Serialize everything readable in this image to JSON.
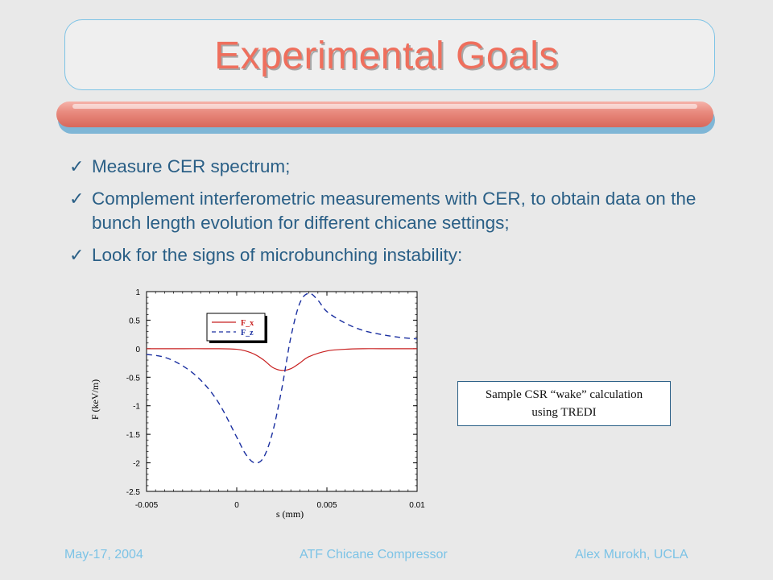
{
  "slide": {
    "title": "Experimental Goals",
    "bullets": [
      "Measure CER spectrum;",
      "Complement interferometric measurements with CER, to obtain data on the bunch length evolution for different chicane settings;",
      "Look for the signs of microbunching instability:"
    ],
    "note_line1": "Sample CSR “wake” calculation",
    "note_line2": "using TREDI",
    "footer_left": "May-17, 2004",
    "footer_center": "ATF Chicane Compressor",
    "footer_right": "Alex Murokh, UCLA",
    "colors": {
      "title": "#ef6f5d",
      "text": "#2a5f86",
      "fx": "#c82020",
      "fz": "#1a2fa0"
    },
    "icons": {
      "bullet": "checkmark-icon"
    }
  },
  "chart_data": {
    "type": "line",
    "xlabel": "s (mm)",
    "ylabel": "F (keV/m)",
    "xlim": [
      -0.005,
      0.01
    ],
    "ylim": [
      -2.5,
      1
    ],
    "x_ticks": [
      "-0.005",
      "0",
      "0.005",
      "0.01"
    ],
    "y_ticks": [
      "1",
      "0.5",
      "0",
      "-0.5",
      "-1",
      "-1.5",
      "-2",
      "-2.5"
    ],
    "legend_position": "top-left",
    "series": [
      {
        "name": "F_x",
        "style": "solid",
        "color": "#c82020",
        "x": [
          -0.005,
          -0.003,
          -0.001,
          0.0,
          0.0005,
          0.001,
          0.0015,
          0.002,
          0.0025,
          0.003,
          0.0035,
          0.004,
          0.005,
          0.006,
          0.007,
          0.008,
          0.01
        ],
        "y": [
          0,
          0,
          0,
          -0.01,
          -0.04,
          -0.1,
          -0.2,
          -0.33,
          -0.38,
          -0.35,
          -0.25,
          -0.14,
          -0.04,
          -0.01,
          0,
          0,
          0
        ]
      },
      {
        "name": "F_z",
        "style": "dashed",
        "color": "#1a2fa0",
        "x": [
          -0.005,
          -0.004,
          -0.003,
          -0.002,
          -0.001,
          0.0,
          0.0005,
          0.001,
          0.0015,
          0.002,
          0.0025,
          0.003,
          0.0035,
          0.004,
          0.0045,
          0.005,
          0.006,
          0.007,
          0.008,
          0.009,
          0.01
        ],
        "y": [
          -0.1,
          -0.15,
          -0.3,
          -0.55,
          -0.95,
          -1.55,
          -1.85,
          -2.0,
          -1.9,
          -1.45,
          -0.7,
          0.2,
          0.8,
          0.97,
          0.85,
          0.65,
          0.45,
          0.32,
          0.25,
          0.2,
          0.17
        ]
      }
    ]
  }
}
